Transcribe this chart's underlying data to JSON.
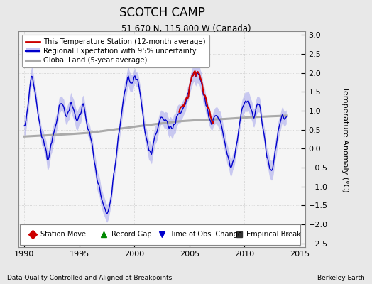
{
  "title": "SCOTCH CAMP",
  "subtitle": "51.670 N, 115.800 W (Canada)",
  "ylabel": "Temperature Anomaly (°C)",
  "xlabel_bottom": "Data Quality Controlled and Aligned at Breakpoints",
  "xlabel_right": "Berkeley Earth",
  "xlim": [
    1989.5,
    2015.5
  ],
  "ylim": [
    -2.6,
    3.1
  ],
  "yticks": [
    -2.5,
    -2,
    -1.5,
    -1,
    -0.5,
    0,
    0.5,
    1,
    1.5,
    2,
    2.5,
    3
  ],
  "xticks": [
    1990,
    1995,
    2000,
    2005,
    2010,
    2015
  ],
  "legend_labels": [
    "This Temperature Station (12-month average)",
    "Regional Expectation with 95% uncertainty",
    "Global Land (5-year average)"
  ],
  "bottom_legend": [
    {
      "marker": "D",
      "color": "#cc0000",
      "label": "Station Move"
    },
    {
      "marker": "^",
      "color": "#008800",
      "label": "Record Gap"
    },
    {
      "marker": "v",
      "color": "#0000cc",
      "label": "Time of Obs. Change"
    },
    {
      "marker": "s",
      "color": "#333333",
      "label": "Empirical Break"
    }
  ],
  "station_color": "#cc0000",
  "regional_color": "#0000cc",
  "regional_fill_color": "#aaaaee",
  "global_color": "#aaaaaa",
  "background_color": "#e8e8e8",
  "plot_bg_color": "#f5f5f5"
}
